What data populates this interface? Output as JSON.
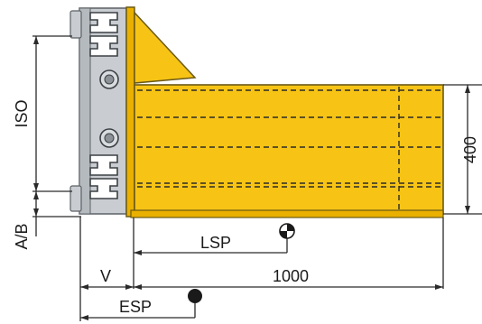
{
  "labels": {
    "iso": "ISO",
    "ab": "A/B",
    "lsp": "LSP",
    "v": "V",
    "length": "1000",
    "esp": "ESP",
    "height": "400"
  },
  "colors": {
    "fork_yellow": "#f7c415",
    "fork_shade": "#e9b000",
    "outline": "#6b5a16",
    "carriage_gray": "#c9cdd1",
    "carriage_dark": "#5b6166",
    "line": "#2a2a2a",
    "background": "#ffffff"
  },
  "icons": {
    "lsp_marker": "center-of-gravity-icon",
    "esp_marker": "point-marker-icon"
  }
}
